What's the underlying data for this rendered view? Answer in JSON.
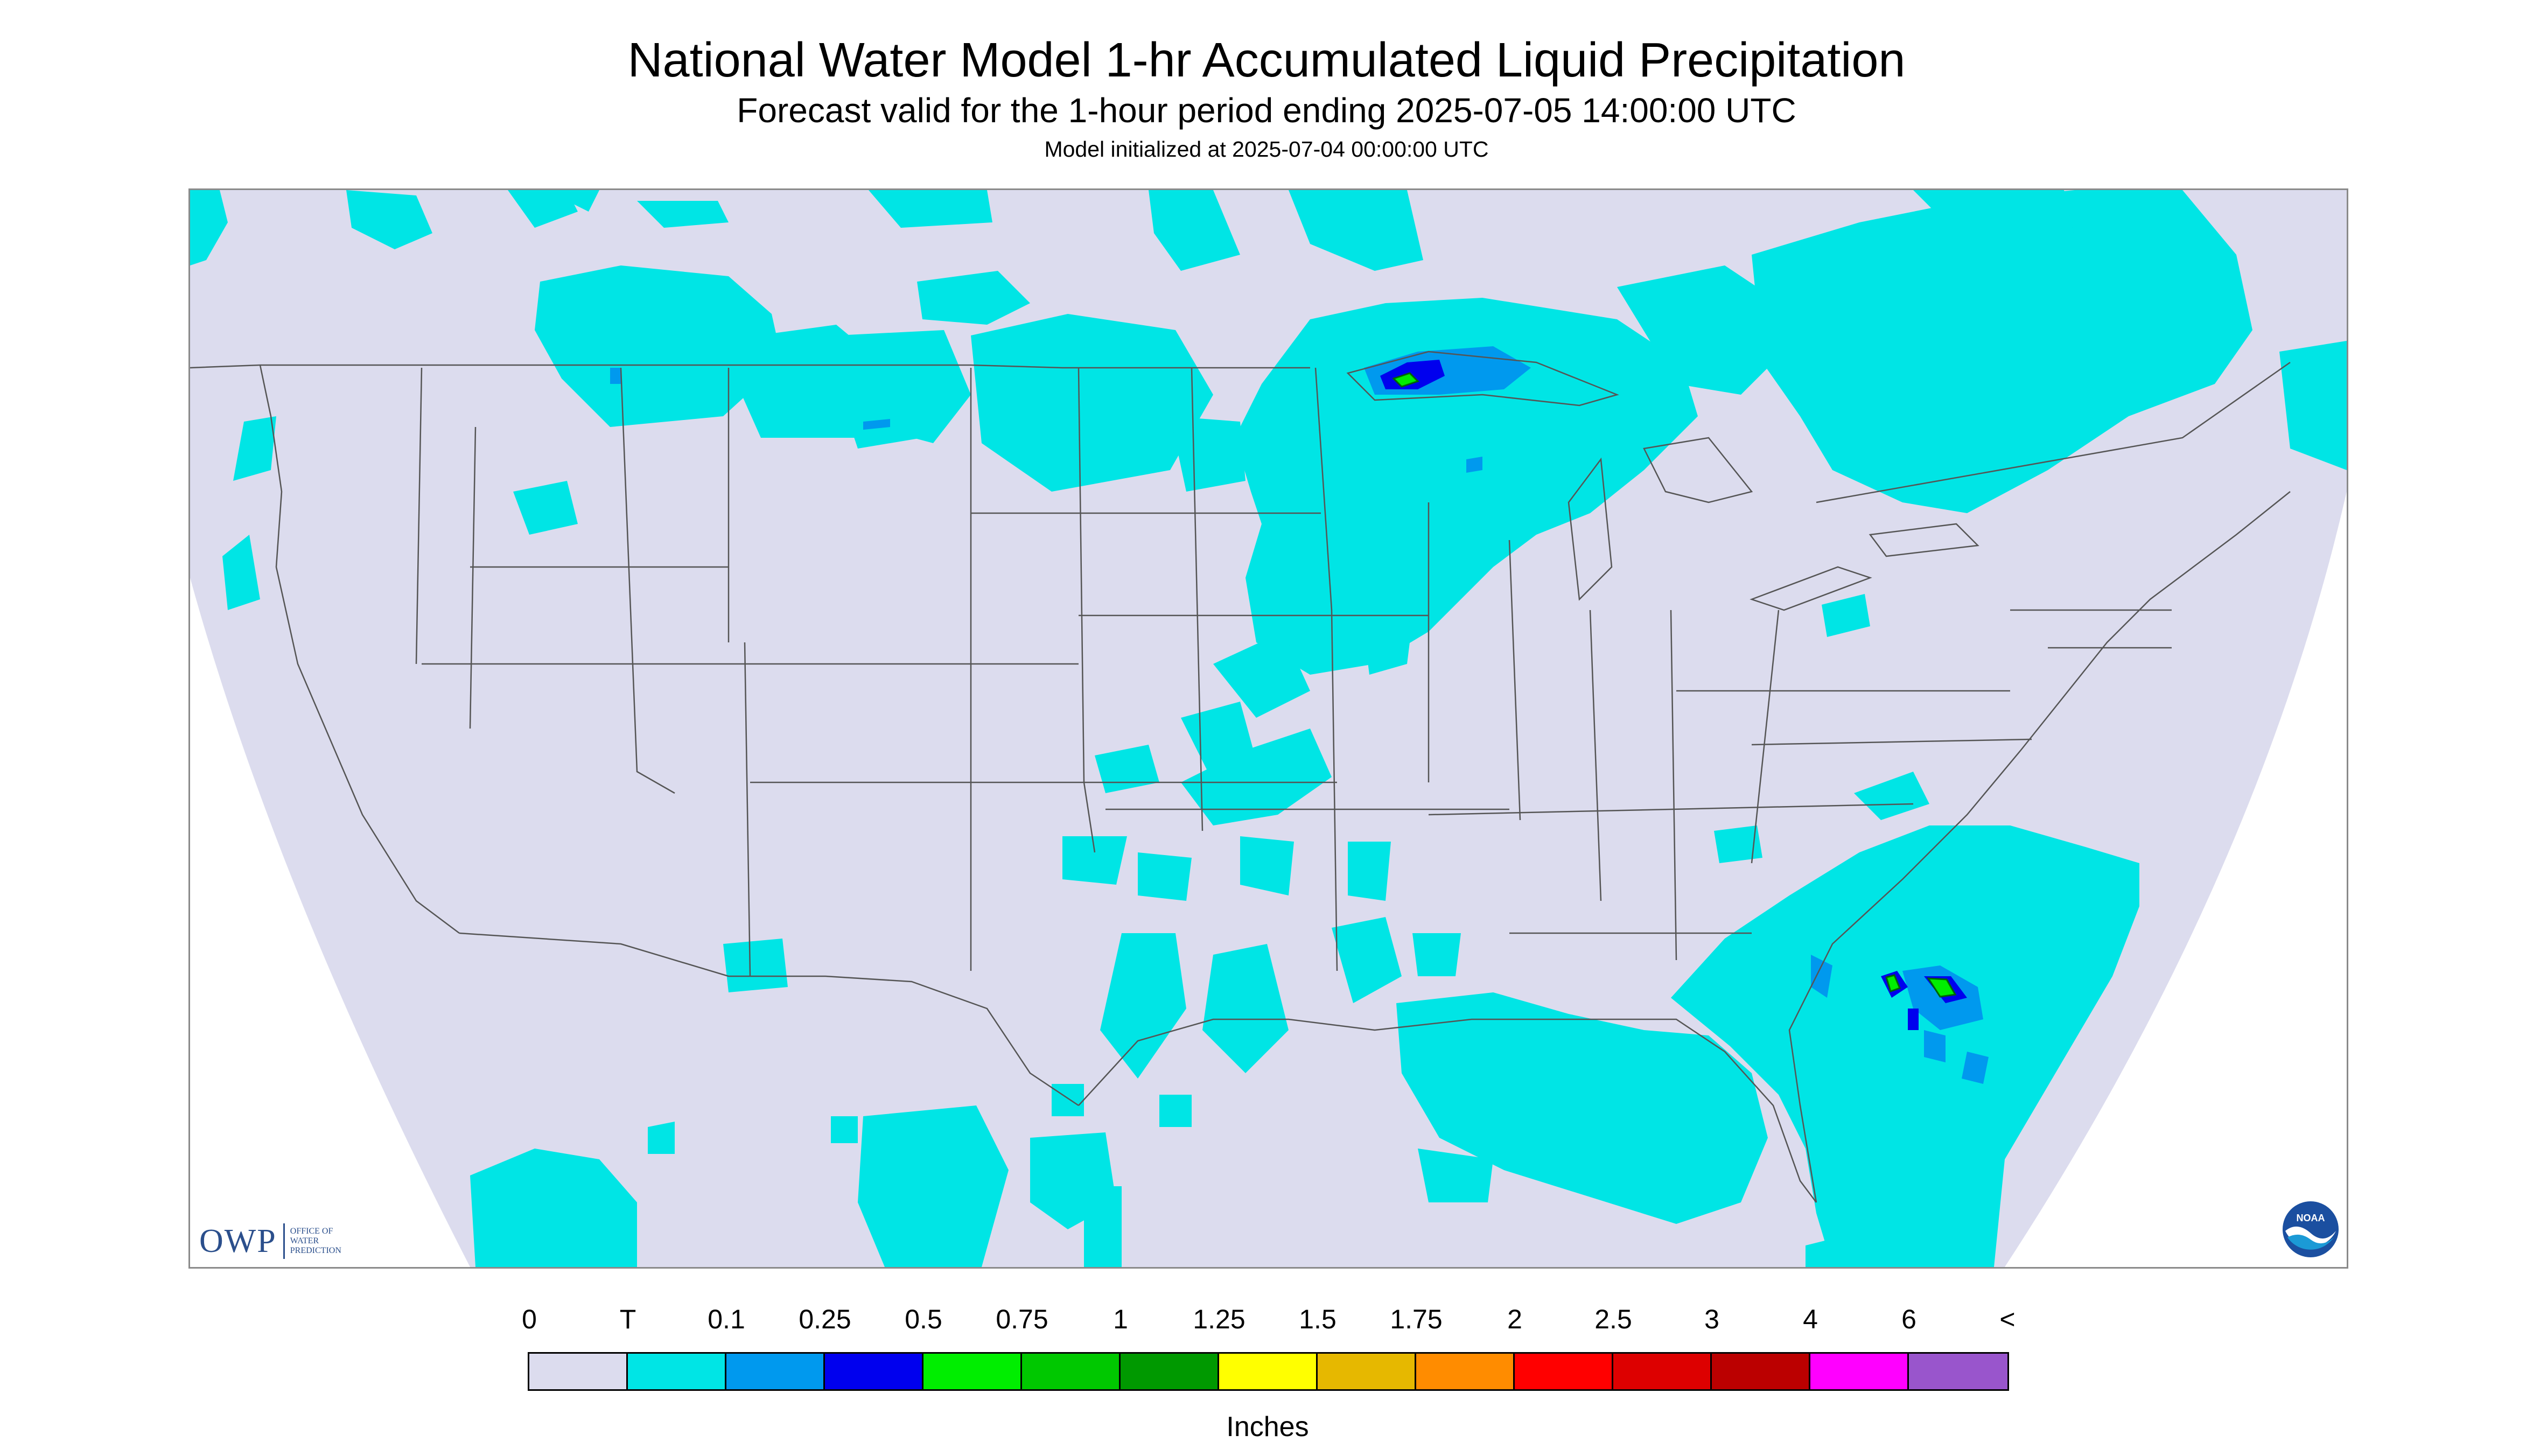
{
  "header": {
    "title": "National Water Model 1-hr Accumulated Liquid Precipitation",
    "subtitle": "Forecast valid for the 1-hour period ending 2025-07-05 14:00:00 UTC",
    "init": "Model initialized at 2025-07-04 00:00:00 UTC"
  },
  "map": {
    "region": "CONUS",
    "background_color": "#dcdcee",
    "outline_color": "#404040",
    "precip_colors": {
      "trace": "#00e5e5",
      "light": "#0099ee",
      "moderate": "#0000ee",
      "heavy": "#00ee00"
    }
  },
  "logos": {
    "owp": {
      "letters": "OWP",
      "words": [
        "OFFICE OF",
        "WATER",
        "PREDICTION"
      ],
      "color": "#2b4f8c"
    },
    "noaa": {
      "label": "NOAA",
      "icon": "noaa-logo-icon"
    }
  },
  "legend": {
    "tick_labels": [
      "0",
      "T",
      "0.1",
      "0.25",
      "0.5",
      "0.75",
      "1",
      "1.25",
      "1.5",
      "1.75",
      "2",
      "2.5",
      "3",
      "4",
      "6",
      "<"
    ],
    "colors": [
      "#dcdcee",
      "#00e5e5",
      "#0099ee",
      "#0000ee",
      "#00ee00",
      "#00c800",
      "#009900",
      "#ffff00",
      "#e6b800",
      "#ff8c00",
      "#ff0000",
      "#dd0000",
      "#bb0000",
      "#ff00ff",
      "#9955cc"
    ],
    "units": "Inches"
  }
}
